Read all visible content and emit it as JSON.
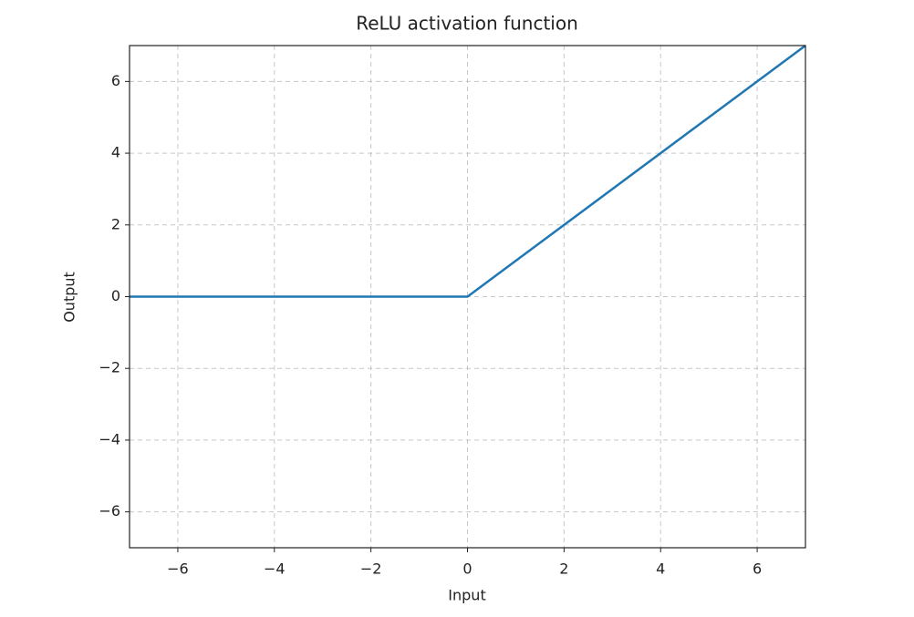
{
  "chart_data": {
    "type": "line",
    "title": "ReLU activation function",
    "x_label": "Input",
    "y_label": "Output",
    "x": [
      -7,
      0,
      7
    ],
    "series": [
      {
        "name": "ReLU",
        "color": "#1f77b4",
        "values": [
          0,
          0,
          7
        ]
      }
    ],
    "xlim": [
      -7,
      7
    ],
    "ylim": [
      -7,
      7
    ],
    "xticks": [
      {
        "value": -6,
        "label": "−6"
      },
      {
        "value": -4,
        "label": "−4"
      },
      {
        "value": -2,
        "label": "−2"
      },
      0,
      2,
      4,
      6
    ],
    "yticks": [
      {
        "value": -6,
        "label": "−6"
      },
      {
        "value": -4,
        "label": "−4"
      },
      {
        "value": -2,
        "label": "−2"
      },
      0,
      2,
      4,
      6
    ],
    "grid": true,
    "legend": false
  }
}
